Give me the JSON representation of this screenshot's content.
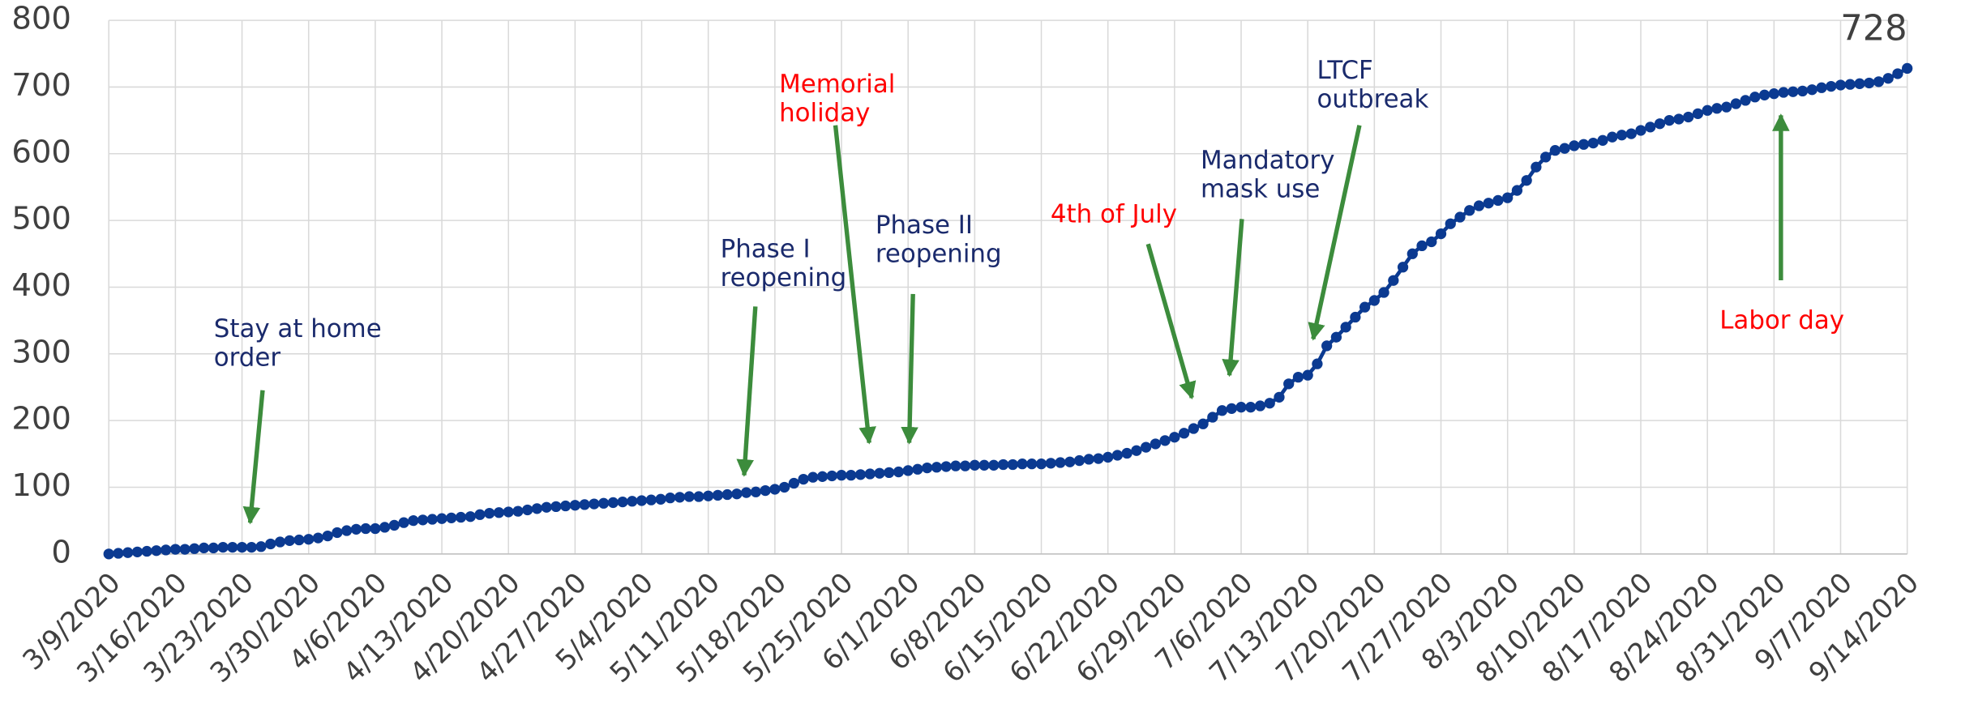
{
  "chart_data": {
    "type": "line",
    "color": "#0b3a91",
    "grid": true,
    "ylim": [
      0,
      800
    ],
    "yticks": [
      0,
      100,
      200,
      300,
      400,
      500,
      600,
      700,
      800
    ],
    "categories": [
      "3/9/2020",
      null,
      null,
      null,
      null,
      null,
      null,
      "3/16/2020",
      null,
      null,
      null,
      null,
      null,
      null,
      "3/23/2020",
      null,
      null,
      null,
      null,
      null,
      null,
      "3/30/2020",
      null,
      null,
      null,
      null,
      null,
      null,
      "4/6/2020",
      null,
      null,
      null,
      null,
      null,
      null,
      "4/13/2020",
      null,
      null,
      null,
      null,
      null,
      null,
      "4/20/2020",
      null,
      null,
      null,
      null,
      null,
      null,
      "4/27/2020",
      null,
      null,
      null,
      null,
      null,
      null,
      "5/4/2020",
      null,
      null,
      null,
      null,
      null,
      null,
      "5/11/2020",
      null,
      null,
      null,
      null,
      null,
      null,
      "5/18/2020",
      null,
      null,
      null,
      null,
      null,
      null,
      "5/25/2020",
      null,
      null,
      null,
      null,
      null,
      null,
      "6/1/2020",
      null,
      null,
      null,
      null,
      null,
      null,
      "6/8/2020",
      null,
      null,
      null,
      null,
      null,
      null,
      "6/15/2020",
      null,
      null,
      null,
      null,
      null,
      null,
      "6/22/2020",
      null,
      null,
      null,
      null,
      null,
      null,
      "6/29/2020",
      null,
      null,
      null,
      null,
      null,
      null,
      "7/6/2020",
      null,
      null,
      null,
      null,
      null,
      null,
      "7/13/2020",
      null,
      null,
      null,
      null,
      null,
      null,
      "7/20/2020",
      null,
      null,
      null,
      null,
      null,
      null,
      "7/27/2020",
      null,
      null,
      null,
      null,
      null,
      null,
      "8/3/2020",
      null,
      null,
      null,
      null,
      null,
      null,
      "8/10/2020",
      null,
      null,
      null,
      null,
      null,
      null,
      "8/17/2020",
      null,
      null,
      null,
      null,
      null,
      null,
      "8/24/2020",
      null,
      null,
      null,
      null,
      null,
      null,
      "8/31/2020",
      null,
      null,
      null,
      null,
      null,
      null,
      "9/7/2020",
      null,
      null,
      null,
      null,
      null,
      null,
      "9/14/2020"
    ],
    "values": [
      0,
      1,
      2,
      3,
      4,
      5,
      6,
      7,
      7,
      8,
      9,
      9,
      10,
      10,
      10,
      10,
      11,
      15,
      18,
      20,
      21,
      22,
      24,
      27,
      32,
      35,
      37,
      38,
      38,
      40,
      43,
      47,
      50,
      51,
      52,
      53,
      54,
      55,
      56,
      59,
      61,
      62,
      63,
      64,
      66,
      68,
      70,
      71,
      72,
      73,
      74,
      75,
      76,
      77,
      78,
      79,
      80,
      81,
      82,
      84,
      85,
      86,
      86,
      87,
      88,
      89,
      90,
      92,
      93,
      95,
      97,
      100,
      106,
      112,
      115,
      116,
      117,
      118,
      118,
      119,
      120,
      121,
      122,
      123,
      125,
      127,
      129,
      130,
      131,
      132,
      132,
      133,
      133,
      133,
      134,
      134,
      135,
      135,
      135,
      136,
      137,
      138,
      140,
      142,
      143,
      145,
      148,
      151,
      155,
      160,
      165,
      170,
      175,
      181,
      188,
      195,
      205,
      215,
      218,
      220,
      220,
      222,
      226,
      235,
      255,
      265,
      268,
      285,
      312,
      325,
      340,
      355,
      370,
      380,
      392,
      410,
      430,
      450,
      462,
      468,
      480,
      495,
      505,
      515,
      522,
      526,
      530,
      534,
      545,
      560,
      580,
      595,
      605,
      608,
      612,
      614,
      616,
      620,
      625,
      628,
      630,
      635,
      640,
      645,
      650,
      652,
      655,
      660,
      665,
      668,
      670,
      675,
      680,
      685,
      688,
      690,
      692,
      693,
      694,
      696,
      699,
      701,
      703,
      704,
      705,
      706,
      708,
      713,
      720,
      728
    ],
    "annotations": [
      {
        "text": [
          "Stay at home",
          "order"
        ],
        "color": "#1a2a6c"
      },
      {
        "text": [
          "Phase I",
          "reopening"
        ],
        "color": "#1a2a6c"
      },
      {
        "text": [
          "Memorial",
          "holiday"
        ],
        "color": "#ff0000"
      },
      {
        "text": [
          "Phase II",
          "reopening"
        ],
        "color": "#1a2a6c"
      },
      {
        "text": [
          "4th of July"
        ],
        "color": "#ff0000"
      },
      {
        "text": [
          "Mandatory",
          "mask use"
        ],
        "color": "#1a2a6c"
      },
      {
        "text": [
          "LTCF",
          "outbreak"
        ],
        "color": "#1a2a6c"
      },
      {
        "text": [
          "Labor day"
        ],
        "color": "#ff0000"
      }
    ]
  }
}
